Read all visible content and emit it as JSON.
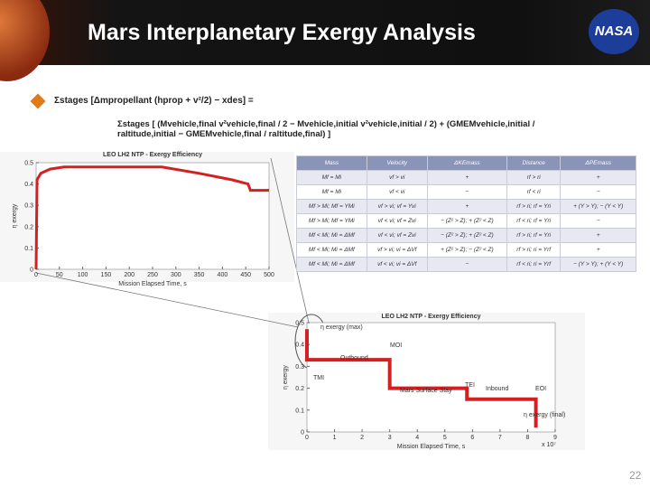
{
  "header": {
    "title": "Mars Interplanetary Exergy Analysis",
    "logo": "NASA"
  },
  "formula": {
    "lhs": "Σstages [Δmpropellant (hprop + v²/2) − xdes] =",
    "rhs": "Σstages [ (Mvehicle,final v²vehicle,final / 2 − Mvehicle,initial v²vehicle,initial / 2) + (GMEMvehicle,initial / raltitude,initial − GMEMvehicle,final / raltitude,final) ]"
  },
  "charts": [
    {
      "title": "LEO LH2 NTP - Exergy Efficiency",
      "xlabel": "Mission Elapsed Time, s",
      "ylabel": "η exergy",
      "xlim": [
        0,
        500
      ],
      "ylim": [
        0,
        0.5
      ],
      "xticks": [
        0,
        50,
        100,
        150,
        200,
        250,
        300,
        350,
        400,
        450,
        500
      ],
      "yticks": [
        0,
        0.1,
        0.2,
        0.3,
        0.4,
        0.5
      ],
      "color": "#d42020",
      "x": [
        0,
        2,
        10,
        30,
        60,
        120,
        270,
        350,
        420,
        455,
        460,
        500
      ],
      "y": [
        0,
        0.42,
        0.45,
        0.47,
        0.48,
        0.48,
        0.48,
        0.45,
        0.42,
        0.4,
        0.37,
        0.37
      ],
      "annotations": []
    },
    {
      "title": "LEO LH2 NTP - Exergy Efficiency",
      "xlabel": "Mission Elapsed Time, s",
      "ylabel": "η exergy",
      "xlim": [
        0,
        9
      ],
      "ylim": [
        0,
        0.5
      ],
      "xticks": [
        0,
        1,
        2,
        3,
        4,
        5,
        6,
        7,
        8,
        9
      ],
      "yticks": [
        0,
        0.1,
        0.2,
        0.3,
        0.4,
        0.5
      ],
      "color": "#d42020",
      "x": [
        0,
        0,
        3,
        3,
        5.8,
        5.8,
        8.3,
        8.3
      ],
      "y": [
        0.47,
        0.33,
        0.33,
        0.2,
        0.2,
        0.15,
        0.15,
        0.02
      ],
      "annotations": [
        "η exergy (max)",
        "MOI",
        "Outbound",
        "TMI",
        "Mars Surface Stay",
        "TEI",
        "Inbound",
        "EOI",
        "η exergy (final)",
        "x 10⁷"
      ]
    }
  ],
  "table": {
    "header": [
      "Mass",
      "Velocity",
      "ΔKEmass",
      "Distance",
      "ΔPEmass"
    ],
    "rows": [
      [
        "Mf = Mi",
        "vf > vi",
        "+",
        "rf > ri",
        "+"
      ],
      [
        "Mf = Mi",
        "vf < vi",
        "−",
        "rf < ri",
        "−"
      ],
      [
        "Mf > Mi; Mf = YMi",
        "vf > vi; vf = Yvi",
        "+",
        "rf > ri; rf = Yri",
        "+ (Y > Y); − (Y < Y)"
      ],
      [
        "Mf > Mi; Mf = YMi",
        "vf < vi; vf = Zvi",
        "− (Z² > Z); + (Z² < Z)",
        "rf < ri; rf = Yri",
        "−"
      ],
      [
        "Mf < Mi; Mi = ΔMf",
        "vf < vi; vf = Zvi",
        "− (Z² > Z); + (Z² < Z)",
        "rf > ri; rf = Yri",
        "+"
      ],
      [
        "Mf < Mi; Mi = ΔMf",
        "vf > vi; vi = ΔVf",
        "+ (Z² > Z); − (Z² < Z)",
        "rf > ri; ri = Yrf",
        "+"
      ],
      [
        "Mf < Mi; Mi = ΔMf",
        "vf < vi; vi = ΔVf",
        "−",
        "rf < ri; ri = Yrf",
        "− (Y > Y); + (Y < Y)"
      ]
    ]
  },
  "page_number": "22"
}
